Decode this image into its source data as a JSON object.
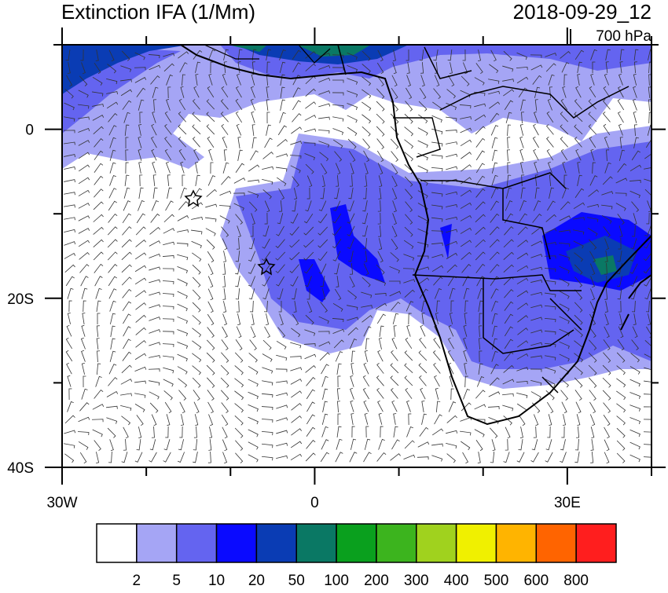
{
  "map": {
    "title": "Extinction IFA (1/Mm)",
    "date": "2018-09-29_12",
    "level": "700 hPa",
    "xlim": [
      -30,
      40
    ],
    "ylim": [
      -40,
      10
    ],
    "xticks": [
      {
        "value": -30,
        "label": "30W"
      },
      0,
      {
        "value": 30,
        "label": "30E"
      }
    ],
    "yticks": [
      0,
      {
        "value": -20,
        "label": "20S"
      },
      {
        "value": -40,
        "label": "40S"
      }
    ],
    "xminor": [
      -20,
      -10,
      10,
      20,
      40
    ],
    "yminor": [
      10,
      -10,
      -30
    ],
    "colorbar": {
      "levels": [
        2,
        5,
        10,
        20,
        50,
        100,
        200,
        300,
        400,
        500,
        600,
        800
      ],
      "colors": [
        "#ffffff",
        "#a5a5f5",
        "#6464f0",
        "#0a0aff",
        "#0a3cb4",
        "#0a7864",
        "#0aa01e",
        "#3cb41e",
        "#a0d21e",
        "#f0f000",
        "#ffb400",
        "#ff6400",
        "#ff1e1e"
      ]
    }
  }
}
